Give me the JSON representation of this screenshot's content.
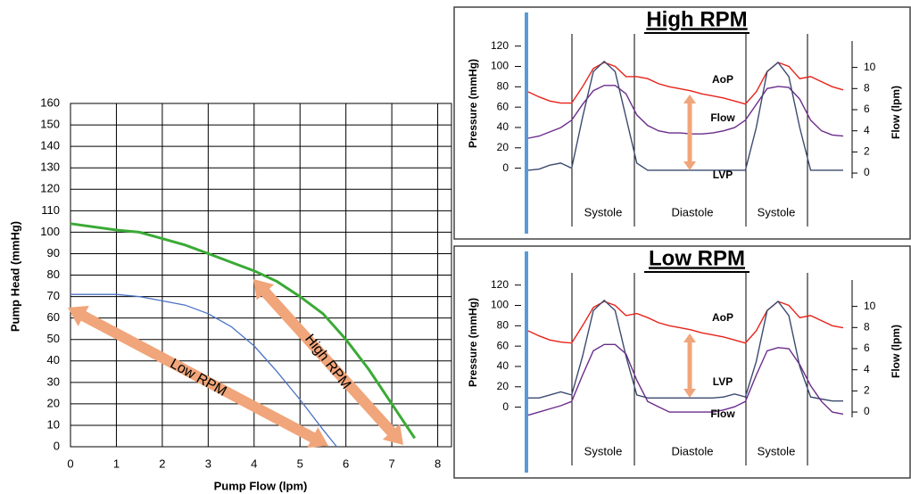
{
  "chart_data": [
    {
      "type": "line",
      "xlabel": "Pump Flow (lpm)",
      "ylabel": "Pump Head (mmHg)",
      "xlim": [
        0,
        8.3
      ],
      "ylim": [
        0,
        160
      ],
      "xticks": [
        0,
        1,
        2,
        3,
        4,
        5,
        6,
        7,
        8
      ],
      "yticks": [
        0,
        10,
        20,
        30,
        40,
        50,
        60,
        70,
        80,
        90,
        100,
        110,
        120,
        130,
        140,
        150,
        160
      ],
      "grid": true,
      "series": [
        {
          "color": "#3aaa35",
          "x": [
            0,
            1,
            1.5,
            2,
            2.5,
            3,
            3.5,
            4,
            4.5,
            5,
            5.5,
            6,
            6.5,
            7,
            7.5
          ],
          "values": [
            104,
            101,
            100,
            97,
            94,
            90,
            86,
            82,
            77,
            70,
            62,
            50,
            36,
            20,
            4
          ]
        },
        {
          "color": "#4a72c4",
          "x": [
            0,
            0.5,
            1,
            1.5,
            2,
            2.5,
            3,
            3.5,
            4,
            4.5,
            5,
            5.5,
            5.8
          ],
          "values": [
            71,
            71,
            71,
            70,
            68,
            66,
            62,
            56,
            47,
            35,
            22,
            8,
            0
          ]
        }
      ],
      "annotations": [
        "Low RPM",
        "High RPM"
      ]
    },
    {
      "type": "waveform",
      "title": "High RPM",
      "ylabel": "Pressure (mmHg)",
      "y2label": "Flow (lpm)",
      "ylim": [
        -10,
        125
      ],
      "yticks": [
        0,
        20,
        40,
        60,
        80,
        100,
        120
      ],
      "y2lim": [
        -0.5,
        12.5
      ],
      "y2ticks": [
        0,
        2,
        4,
        6,
        8,
        10
      ],
      "phases": [
        "Systole",
        "Diastole",
        "Systole"
      ],
      "series": [
        {
          "name": "AoP",
          "color": "#e8221a",
          "values": [
            75,
            70,
            66,
            64,
            64,
            80,
            98,
            104,
            100,
            90,
            90,
            88,
            83,
            80,
            78,
            76,
            73,
            71,
            69,
            66,
            63,
            75,
            95,
            104,
            100,
            88,
            90,
            85,
            80,
            77
          ]
        },
        {
          "name": "Flow",
          "color": "#6b2c8a",
          "axis": "y2",
          "values": [
            3.3,
            3.5,
            3.9,
            4.3,
            5,
            6.5,
            7.8,
            8.3,
            8.3,
            7.5,
            5.5,
            4.5,
            4,
            3.8,
            3.8,
            3.7,
            3.7,
            3.8,
            4,
            4.3,
            5,
            6.5,
            8,
            8.2,
            8.1,
            7,
            5,
            4,
            3.6,
            3.5
          ]
        },
        {
          "name": "LVP",
          "color": "#3b4a6e",
          "values": [
            -2,
            -1,
            3,
            5,
            0,
            50,
            95,
            105,
            95,
            50,
            5,
            -2,
            -2,
            -2,
            -2,
            -2,
            -2,
            -2,
            -2,
            -2,
            -2,
            40,
            95,
            104,
            90,
            40,
            -2,
            -2,
            -2,
            -2
          ]
        }
      ]
    },
    {
      "type": "waveform",
      "title": "Low RPM",
      "ylabel": "Pressure (mmHg)",
      "y2label": "Flow (lpm)",
      "ylim": [
        -10,
        125
      ],
      "yticks": [
        0,
        20,
        40,
        60,
        80,
        100,
        120
      ],
      "y2lim": [
        -0.5,
        12.5
      ],
      "y2ticks": [
        0,
        2,
        4,
        6,
        8,
        10
      ],
      "phases": [
        "Systole",
        "Diastole",
        "Systole"
      ],
      "series": [
        {
          "name": "AoP",
          "color": "#e8221a",
          "values": [
            75,
            70,
            66,
            64,
            63,
            80,
            98,
            104,
            100,
            90,
            92,
            88,
            83,
            80,
            78,
            76,
            73,
            71,
            69,
            66,
            63,
            75,
            95,
            104,
            100,
            88,
            90,
            85,
            80,
            78
          ]
        },
        {
          "name": "LVP",
          "color": "#3b4a6e",
          "values": [
            9,
            9,
            12,
            15,
            12,
            50,
            95,
            105,
            95,
            50,
            12,
            9,
            9,
            9,
            9,
            9,
            9,
            9,
            10,
            13,
            10,
            45,
            95,
            104,
            90,
            40,
            10,
            8,
            6,
            6
          ]
        },
        {
          "name": "Flow",
          "color": "#6b2c8a",
          "axis": "y2",
          "values": [
            -0.3,
            0,
            0.3,
            0.6,
            1,
            3.5,
            5.8,
            6.4,
            6.4,
            5.5,
            3,
            1,
            0.5,
            0,
            0,
            0,
            0,
            0,
            0.2,
            0.5,
            1,
            3.5,
            5.8,
            6.1,
            6,
            4.5,
            2.5,
            1,
            0,
            -0.2
          ]
        }
      ]
    }
  ]
}
